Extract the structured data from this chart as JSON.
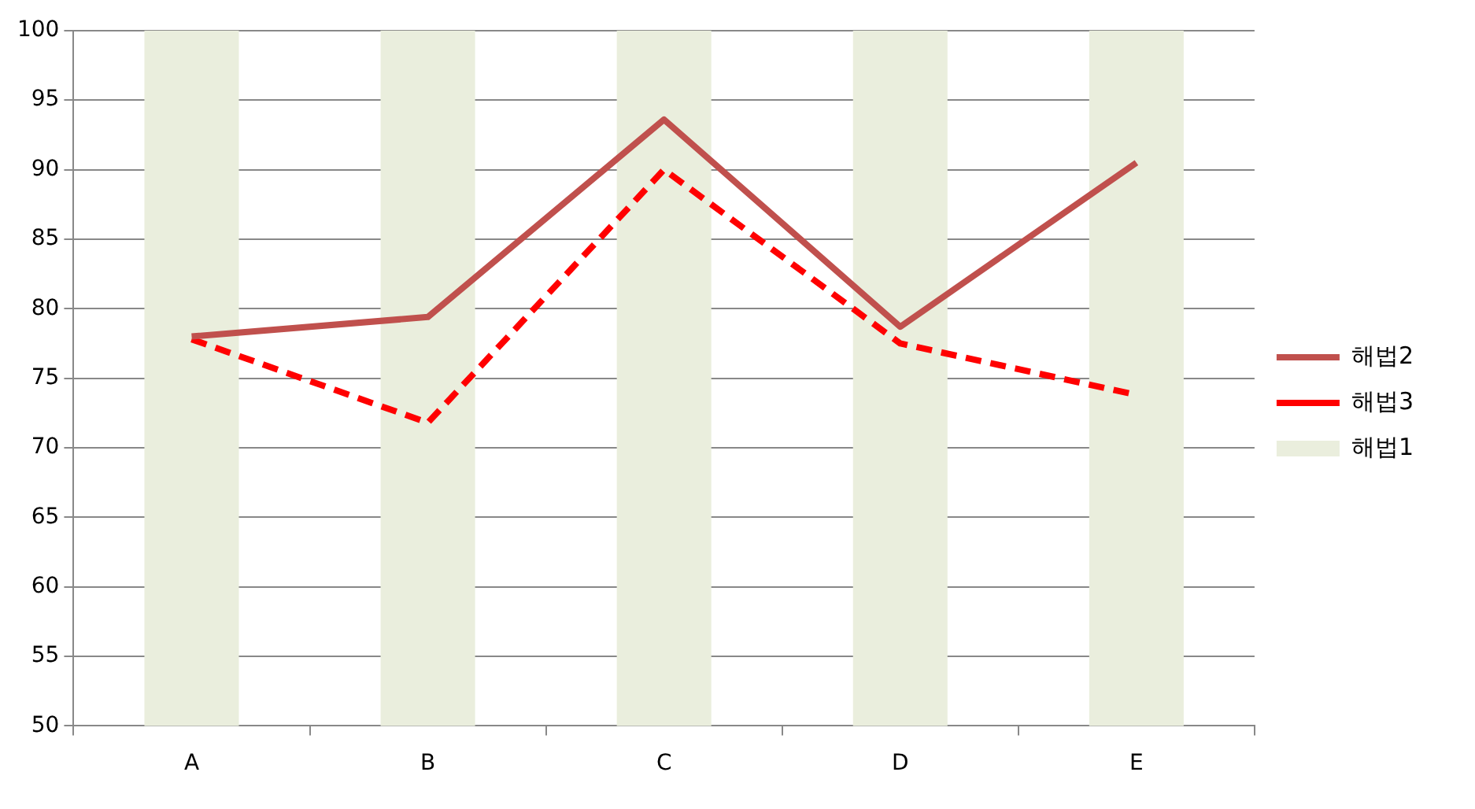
{
  "chart_data": {
    "type": "line",
    "categories": [
      "A",
      "B",
      "C",
      "D",
      "E"
    ],
    "series": [
      {
        "name": "해법1",
        "type": "bar",
        "color": "#eaeedd",
        "values": [
          100,
          100,
          100,
          100,
          100
        ]
      },
      {
        "name": "해법2",
        "color": "#c0504d",
        "line_style": "solid",
        "values": [
          78,
          79.4,
          93.6,
          78.7,
          90.5
        ]
      },
      {
        "name": "해법3",
        "color": "#ff0000",
        "line_style": "dashed",
        "values": [
          77.8,
          71.8,
          90,
          77.5,
          73.8
        ]
      }
    ],
    "ylim": [
      50,
      100
    ],
    "yticks": [
      50,
      55,
      60,
      65,
      70,
      75,
      80,
      85,
      90,
      95,
      100
    ],
    "grid": "y",
    "legend": "right",
    "marker": "none"
  }
}
